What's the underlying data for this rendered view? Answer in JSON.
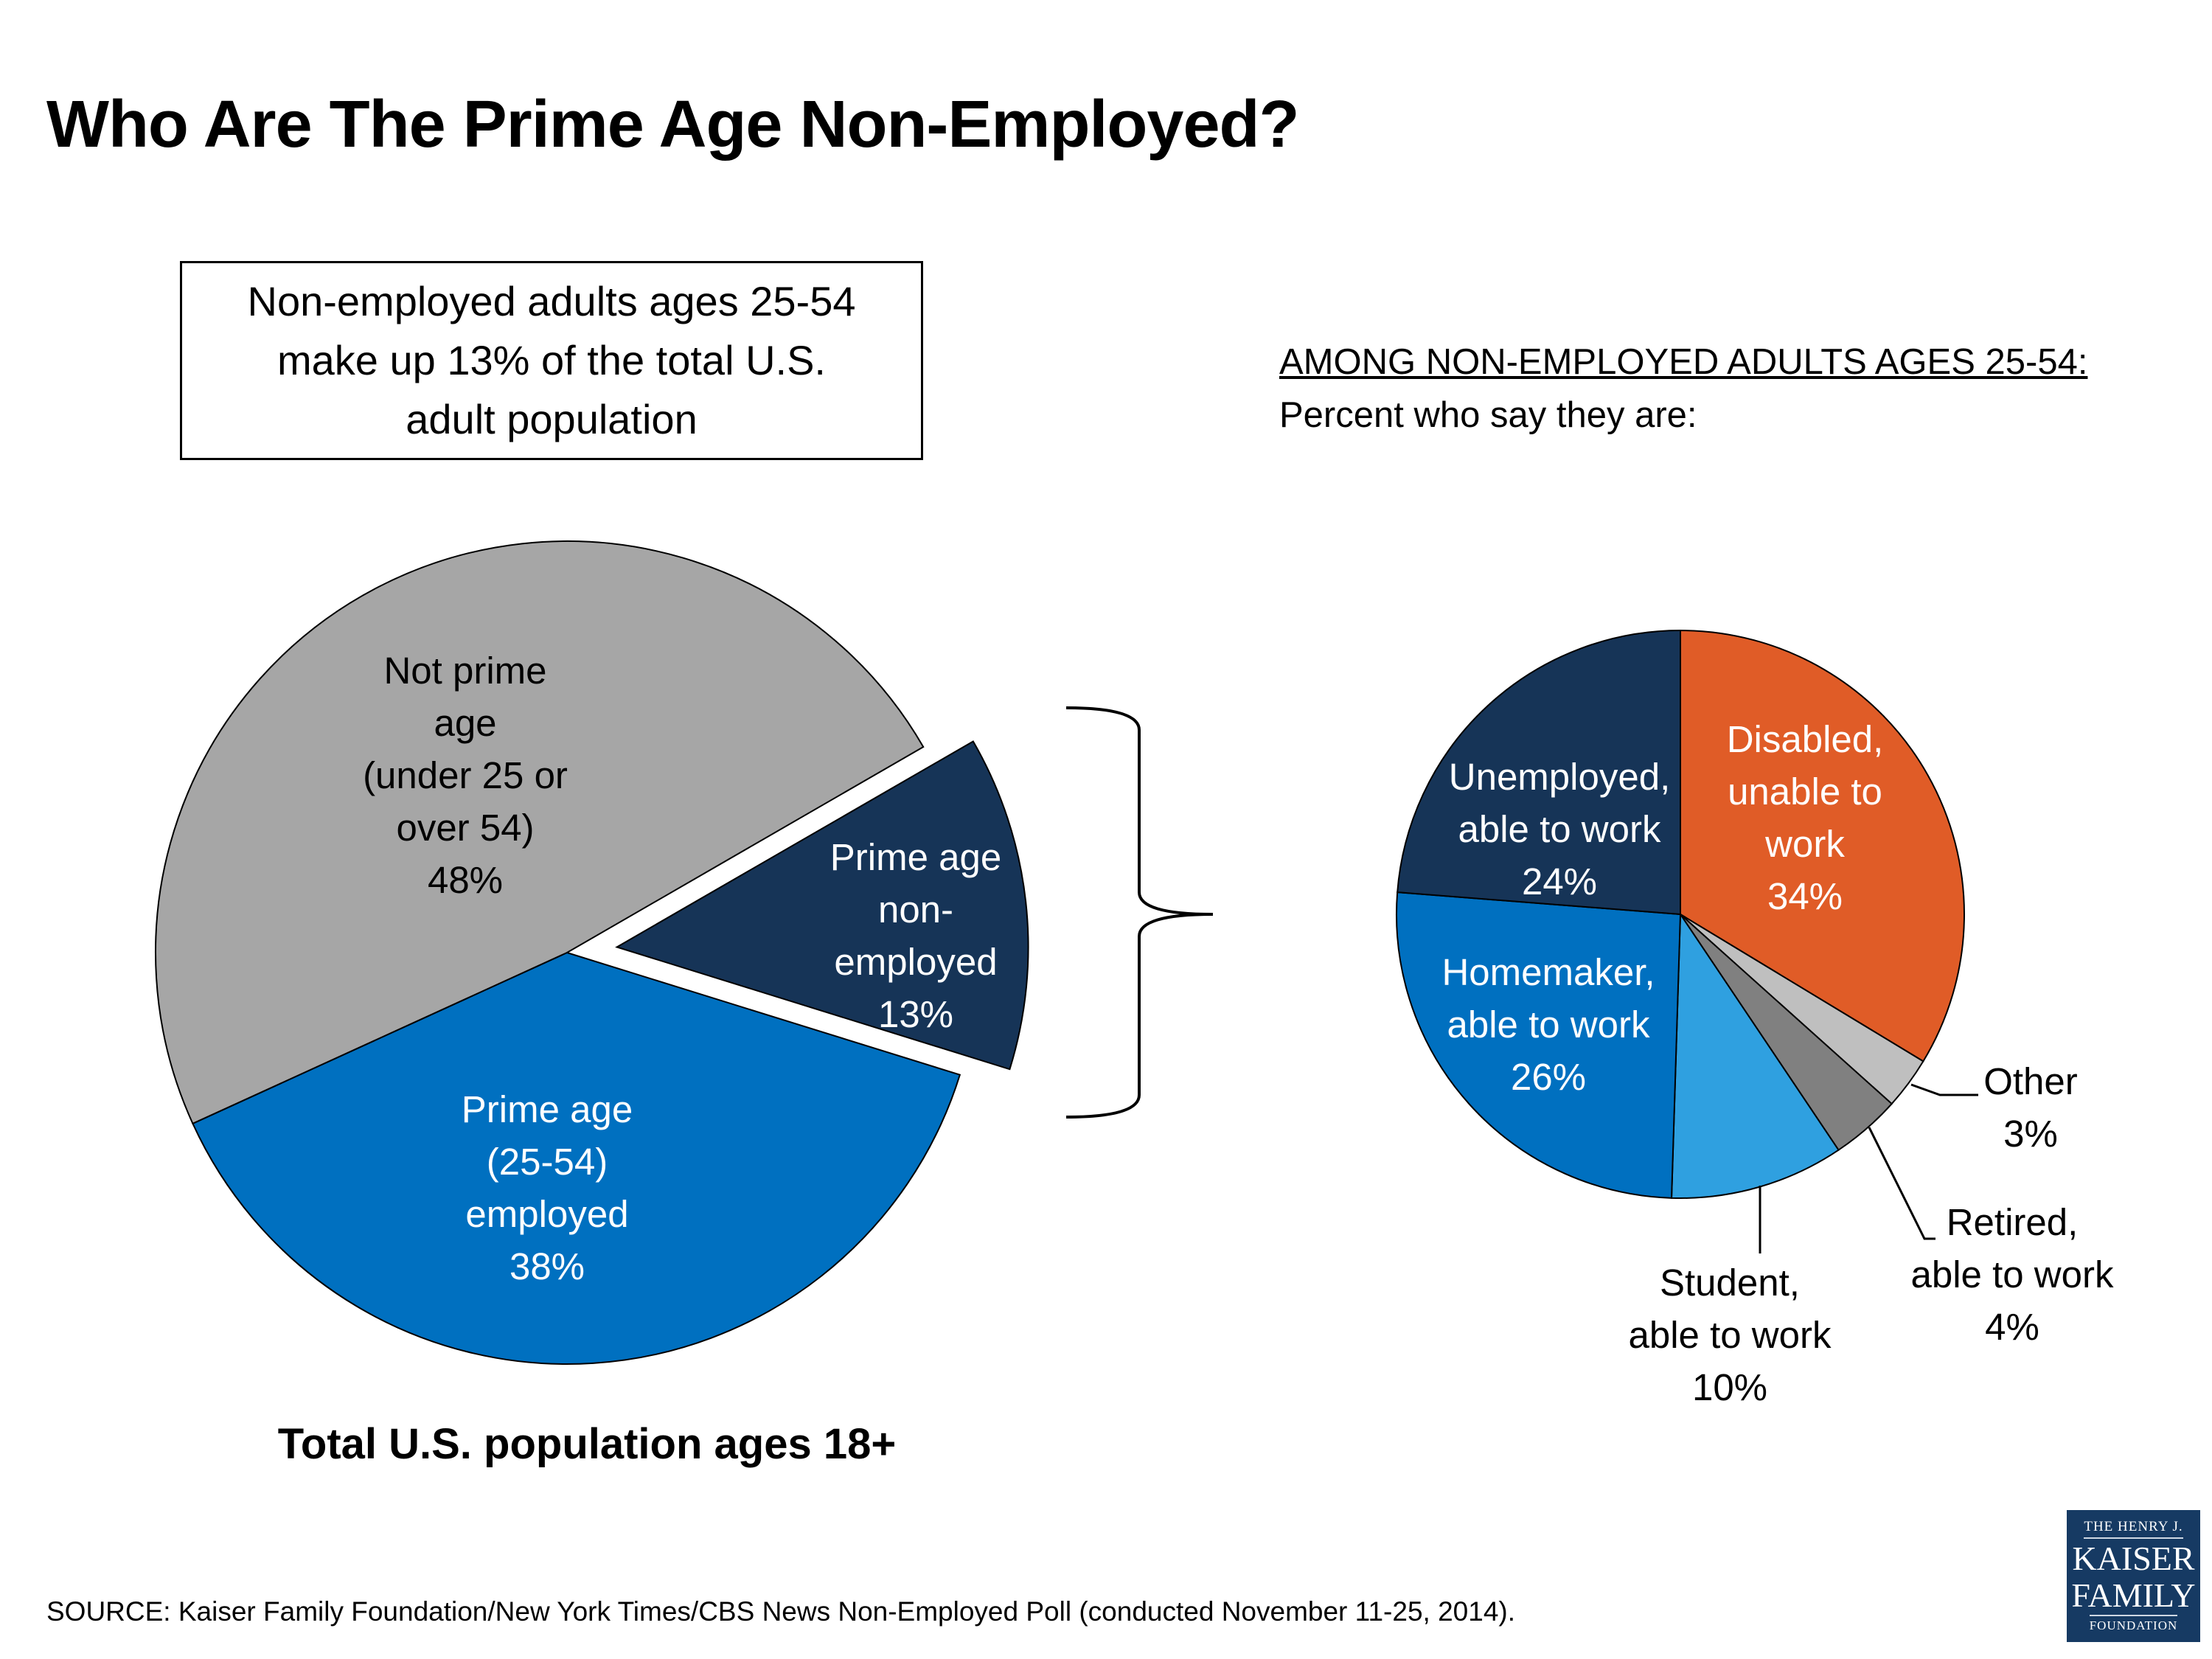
{
  "title": "Who Are The Prime Age Non-Employed?",
  "callout": {
    "lines": [
      "Non-employed adults ages 25-54",
      "make up 13% of the total U.S.",
      "adult population"
    ]
  },
  "right_heading": {
    "line1": "AMONG NON-EMPLOYED ADULTS AGES 25-54:",
    "line2": "Percent who say they are:"
  },
  "source": "SOURCE: Kaiser Family Foundation/New York Times/CBS News Non-Employed Poll (conducted November 11-25, 2014).",
  "logo": {
    "line1": "THE HENRY J.",
    "line2": "KAISER",
    "line3": "FAMILY",
    "line4": "FOUNDATION"
  },
  "chart_data": [
    {
      "type": "pie",
      "title": "Total U.S. population ages 18+",
      "slices": [
        {
          "label_lines": [
            "Prime age",
            "non-",
            "employed"
          ],
          "value": 13,
          "value_label": "13%",
          "color": "#163457",
          "text_color": "#ffffff",
          "exploded": true
        },
        {
          "label_lines": [
            "Prime age",
            "(25-54)",
            "employed"
          ],
          "value": 38,
          "value_label": "38%",
          "color": "#0070c0",
          "text_color": "#ffffff",
          "exploded": false
        },
        {
          "label_lines": [
            "Not prime",
            "age",
            "(under 25 or",
            "over 54)"
          ],
          "value": 48,
          "value_label": "48%",
          "color": "#a6a6a6",
          "text_color": "#000000",
          "exploded": false
        }
      ]
    },
    {
      "type": "pie",
      "title": "",
      "slices": [
        {
          "label_lines": [
            "Disabled,",
            "unable to",
            "work"
          ],
          "value": 34,
          "value_label": "34%",
          "color": "#e05c27",
          "text_color": "#ffffff"
        },
        {
          "label_lines": [
            "Other"
          ],
          "value": 3,
          "value_label": "3%",
          "color": "#bfbfbf",
          "text_color": "#000000"
        },
        {
          "label_lines": [
            "Retired,",
            "able to work"
          ],
          "value": 4,
          "value_label": "4%",
          "color": "#808080",
          "text_color": "#000000"
        },
        {
          "label_lines": [
            "Student,",
            "able to work"
          ],
          "value": 10,
          "value_label": "10%",
          "color": "#2fa0e0",
          "text_color": "#000000"
        },
        {
          "label_lines": [
            "Homemaker,",
            "able to work"
          ],
          "value": 26,
          "value_label": "26%",
          "color": "#0070c0",
          "text_color": "#ffffff"
        },
        {
          "label_lines": [
            "Unemployed,",
            "able to work"
          ],
          "value": 24,
          "value_label": "24%",
          "color": "#163457",
          "text_color": "#ffffff"
        }
      ]
    }
  ]
}
